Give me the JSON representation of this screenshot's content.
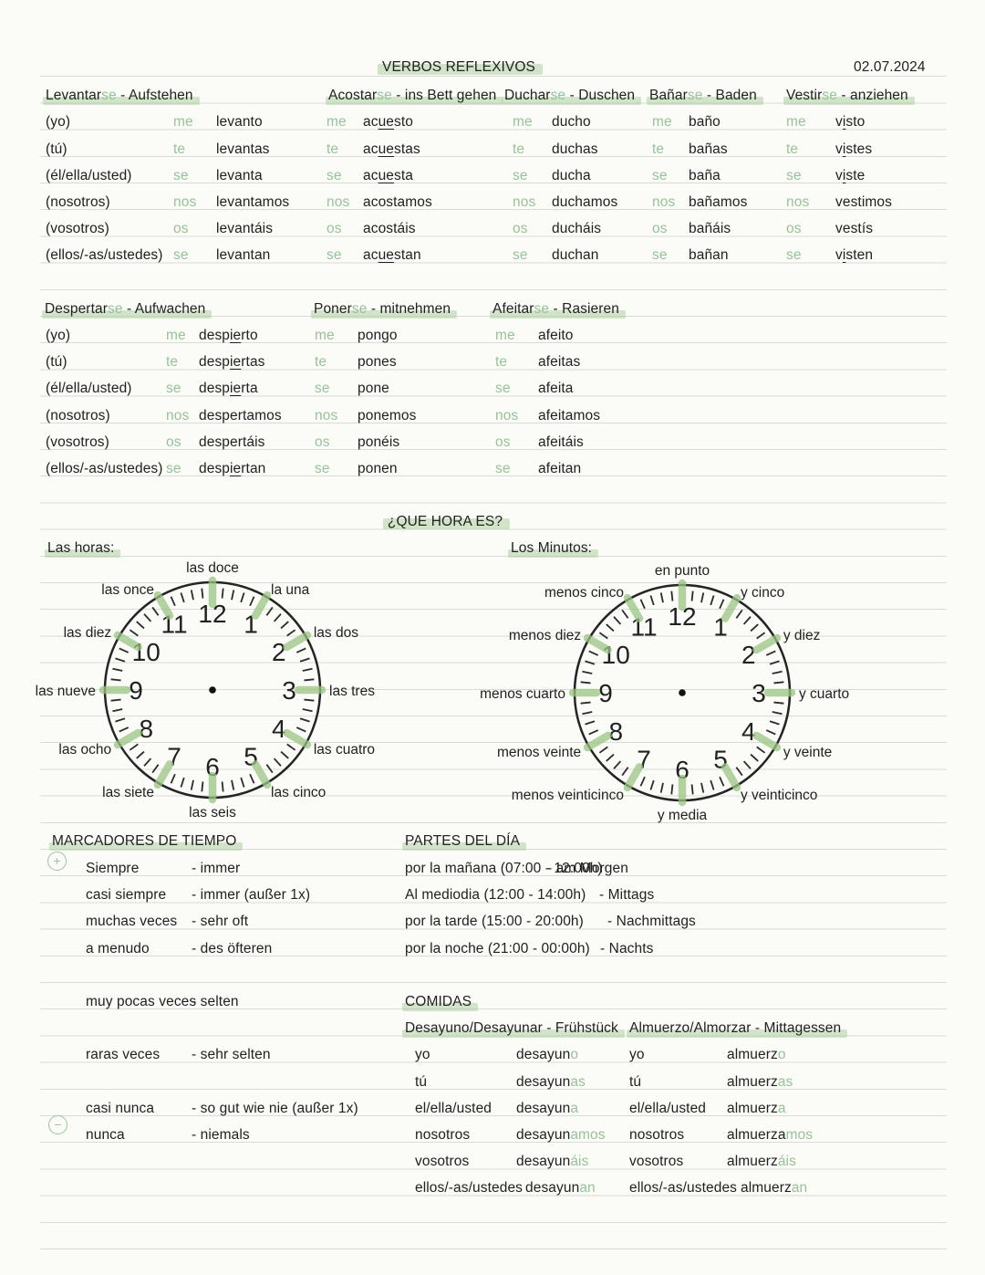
{
  "colors": {
    "ink": "#212121",
    "green_text": "#98c298",
    "highlight": "#a7cc97",
    "ruled_line": "#d9dbd6",
    "paper": "#fbfbf8"
  },
  "header": {
    "title": "VERBOS REFLEXIVOS",
    "date": "02.07.2024"
  },
  "verb_tables": [
    {
      "headers": [
        {
          "base": "Levantar",
          "se": "se",
          "rest": " - Aufstehen"
        },
        {
          "base": "Acostar",
          "se": "se",
          "rest": " - ins Bett gehen"
        },
        {
          "base": "Duchar",
          "se": "se",
          "rest": " - Duschen"
        },
        {
          "base": "Bañar",
          "se": "se",
          "rest": " - Baden"
        },
        {
          "base": "Vestir",
          "se": "se",
          "rest": " - anziehen"
        }
      ],
      "pronouns": [
        "(yo)",
        "(tú)",
        "(él/ella/usted)",
        "(nosotros)",
        "(vosotros)",
        "(ellos/-as/ustedes)"
      ],
      "cells": [
        [
          [
            "me",
            "levanto",
            "",
            ""
          ],
          [
            "me",
            "ac",
            "ue",
            "sto"
          ],
          [
            "me",
            "ducho",
            "",
            ""
          ],
          [
            "me",
            "baño",
            "",
            ""
          ],
          [
            "me",
            "v",
            "i",
            "sto"
          ]
        ],
        [
          [
            "te",
            "levantas",
            "",
            ""
          ],
          [
            "te",
            "ac",
            "ue",
            "stas"
          ],
          [
            "te",
            "duchas",
            "",
            ""
          ],
          [
            "te",
            "bañas",
            "",
            ""
          ],
          [
            "te",
            "v",
            "i",
            "stes"
          ]
        ],
        [
          [
            "se",
            "levanta",
            "",
            ""
          ],
          [
            "se",
            "ac",
            "ue",
            "sta"
          ],
          [
            "se",
            "ducha",
            "",
            ""
          ],
          [
            "se",
            "baña",
            "",
            ""
          ],
          [
            "se",
            "v",
            "i",
            "ste"
          ]
        ],
        [
          [
            "nos",
            "levantamos",
            "",
            ""
          ],
          [
            "nos",
            "acostamos",
            "",
            ""
          ],
          [
            "nos",
            "duchamos",
            "",
            ""
          ],
          [
            "nos",
            "bañamos",
            "",
            ""
          ],
          [
            "nos",
            "vestimos",
            "",
            ""
          ]
        ],
        [
          [
            "os",
            "levantáis",
            "",
            ""
          ],
          [
            "os",
            "acostáis",
            "",
            ""
          ],
          [
            "os",
            "ducháis",
            "",
            ""
          ],
          [
            "os",
            "bañáis",
            "",
            ""
          ],
          [
            "os",
            "vestís",
            "",
            ""
          ]
        ],
        [
          [
            "se",
            "levantan",
            "",
            ""
          ],
          [
            "se",
            "ac",
            "ue",
            "stan"
          ],
          [
            "se",
            "duchan",
            "",
            ""
          ],
          [
            "se",
            "bañan",
            "",
            ""
          ],
          [
            "se",
            "v",
            "i",
            "sten"
          ]
        ]
      ]
    },
    {
      "headers": [
        {
          "base": "Despertar",
          "se": "se",
          "rest": " - Aufwachen"
        },
        {
          "base": "Poner",
          "se": "se",
          "rest": " - mitnehmen"
        },
        {
          "base": "Afeitar",
          "se": "se",
          "rest": " - Rasieren"
        }
      ],
      "pronouns": [
        "(yo)",
        "(tú)",
        "(él/ella/usted)",
        "(nosotros)",
        "(vosotros)",
        "(ellos/-as/ustedes)"
      ],
      "cells": [
        [
          [
            "me",
            "desp",
            "ie",
            "rto"
          ],
          [
            "me",
            "pongo",
            "",
            ""
          ],
          [
            "me",
            "afeito",
            "",
            ""
          ]
        ],
        [
          [
            "te",
            "desp",
            "ie",
            "rtas"
          ],
          [
            "te",
            "pones",
            "",
            ""
          ],
          [
            "te",
            "afeitas",
            "",
            ""
          ]
        ],
        [
          [
            "se",
            "desp",
            "ie",
            "rta"
          ],
          [
            "se",
            "pone",
            "",
            ""
          ],
          [
            "se",
            "afeita",
            "",
            ""
          ]
        ],
        [
          [
            "nos",
            "despertamos",
            "",
            ""
          ],
          [
            "nos",
            "ponemos",
            "",
            ""
          ],
          [
            "nos",
            "afeitamos",
            "",
            ""
          ]
        ],
        [
          [
            "os",
            "despertáis",
            "",
            ""
          ],
          [
            "os",
            "ponéis",
            "",
            ""
          ],
          [
            "os",
            "afeitáis",
            "",
            ""
          ]
        ],
        [
          [
            "se",
            "desp",
            "ie",
            "rtan"
          ],
          [
            "se",
            "ponen",
            "",
            ""
          ],
          [
            "se",
            "afeitan",
            "",
            ""
          ]
        ]
      ]
    }
  ],
  "time": {
    "title": "¿QUE HORA ES?",
    "numerals": [
      "1",
      "2",
      "3",
      "4",
      "5",
      "6",
      "7",
      "8",
      "9",
      "10",
      "11",
      "12"
    ],
    "clocks": [
      {
        "label": "Las horas:",
        "hour_labels": [
          "la una",
          "las dos",
          "las tres",
          "las cuatro",
          "las cinco",
          "las seis",
          "las siete",
          "las ocho",
          "las nueve",
          "las diez",
          "las once",
          "las doce"
        ]
      },
      {
        "label": "Los Minutos:",
        "hour_labels": [
          "y cinco",
          "y diez",
          "y cuarto",
          "y veinte",
          "y veinticinco",
          "y media",
          "menos veinticinco",
          "menos veinte",
          "menos cuarto",
          "menos diez",
          "menos cinco",
          "en punto"
        ]
      }
    ]
  },
  "marcadores": {
    "title": "MARCADORES DE TIEMPO",
    "plus_icon": "+",
    "minus_icon": "−",
    "items": [
      {
        "es": "Siempre",
        "de": "- immer"
      },
      {
        "es": "casi siempre",
        "de": "- immer (außer 1x)"
      },
      {
        "es": "muchas veces",
        "de": "- sehr oft"
      },
      {
        "es": "a menudo",
        "de": "- des öfteren"
      },
      {
        "es": "muy pocas veces",
        "de": "- selten"
      },
      {
        "es": "raras veces",
        "de": "- sehr selten"
      },
      {
        "es": "casi nunca",
        "de": "- so gut wie nie (außer 1x)"
      },
      {
        "es": "nunca",
        "de": "- niemals"
      }
    ]
  },
  "partes": {
    "title": "PARTES DEL DÍA",
    "items": [
      {
        "es": "por la mañana (07:00 - 12:00h)",
        "de": "- am Morgen"
      },
      {
        "es": "Al mediodia (12:00 - 14:00h)",
        "de": "- Mittags"
      },
      {
        "es": "por la tarde (15:00 - 20:00h)",
        "de": "- Nachmittags"
      },
      {
        "es": "por la noche (21:00 - 00:00h)",
        "de": "- Nachts"
      }
    ]
  },
  "comidas": {
    "title": "COMIDAS",
    "tables": [
      {
        "header": "Desayuno/Desayunar - Frühstück",
        "rows": [
          {
            "p": "yo",
            "stem": "desayun",
            "end": "o"
          },
          {
            "p": "tú",
            "stem": "desayun",
            "end": "as"
          },
          {
            "p": "el/ella/usted",
            "stem": "desayun",
            "end": "a"
          },
          {
            "p": "nosotros",
            "stem": "desayun",
            "end": "amos"
          },
          {
            "p": "vosotros",
            "stem": "desayun",
            "end": "áis"
          },
          {
            "p": "ellos/-as/ustedes",
            "stem": "desayun",
            "end": "an"
          }
        ]
      },
      {
        "header": "Almuerzo/Almorzar - Mittagessen",
        "rows": [
          {
            "p": "yo",
            "stem": "almuerz",
            "end": "o"
          },
          {
            "p": "tú",
            "stem": "almuerz",
            "end": "as"
          },
          {
            "p": "el/ella/usted",
            "stem": "almuerz",
            "end": "a"
          },
          {
            "p": "nosotros",
            "stem": "almuerza",
            "end": "mos"
          },
          {
            "p": "vosotros",
            "stem": "almuerz",
            "end": "áis"
          },
          {
            "p": "ellos/-as/ustedes",
            "stem": "almuerz",
            "end": "an"
          }
        ]
      }
    ]
  }
}
